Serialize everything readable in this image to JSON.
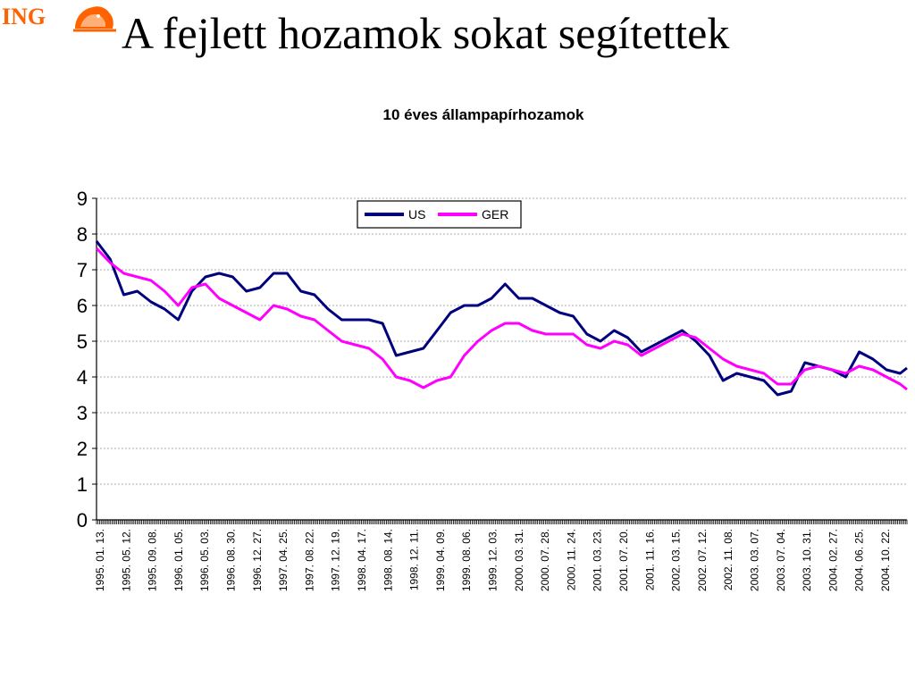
{
  "logo": {
    "text": "ING"
  },
  "slide": {
    "title": "A fejlett hozamok sokat segítettek"
  },
  "colors": {
    "us": "#00007f",
    "ger": "#ff00ff",
    "logo": "#ff6200"
  },
  "chart_data": {
    "type": "line",
    "title": "10 éves állampapírhozamok",
    "xlabel": "",
    "ylabel": "",
    "ylim": [
      0,
      9
    ],
    "yticks": [
      0,
      1,
      2,
      3,
      4,
      5,
      6,
      7,
      8,
      9
    ],
    "grid": true,
    "legend": "top-center",
    "xtick_labels": [
      "1995. 01. 13.",
      "1995. 05. 12.",
      "1995. 09. 08.",
      "1996. 01. 05.",
      "1996. 05. 03.",
      "1996. 08. 30.",
      "1996. 12. 27.",
      "1997. 04. 25.",
      "1997. 08. 22.",
      "1997. 12. 19.",
      "1998. 04. 17.",
      "1998. 08. 14.",
      "1998. 12. 11.",
      "1999. 04. 09.",
      "1999. 08. 06.",
      "1999. 12. 03.",
      "2000. 03. 31.",
      "2000. 07. 28.",
      "2000. 11. 24.",
      "2001. 03. 23.",
      "2001. 07. 20.",
      "2001. 11. 16.",
      "2002. 03. 15.",
      "2002. 07. 12.",
      "2002. 11. 08.",
      "2003. 03. 07.",
      "2003. 07. 04.",
      "2003. 10. 31.",
      "2004. 02. 27.",
      "2004. 06. 25.",
      "2004. 10. 22."
    ],
    "x": [
      "1995-01",
      "1995-03",
      "1995-05",
      "1995-07",
      "1995-09",
      "1995-11",
      "1996-01",
      "1996-03",
      "1996-05",
      "1996-07",
      "1996-09",
      "1996-11",
      "1997-01",
      "1997-03",
      "1997-05",
      "1997-07",
      "1997-09",
      "1997-11",
      "1998-01",
      "1998-03",
      "1998-05",
      "1998-07",
      "1998-09",
      "1998-11",
      "1999-01",
      "1999-03",
      "1999-05",
      "1999-07",
      "1999-09",
      "1999-11",
      "2000-01",
      "2000-03",
      "2000-05",
      "2000-07",
      "2000-09",
      "2000-11",
      "2001-01",
      "2001-03",
      "2001-05",
      "2001-07",
      "2001-09",
      "2001-11",
      "2002-01",
      "2002-03",
      "2002-05",
      "2002-07",
      "2002-09",
      "2002-11",
      "2003-01",
      "2003-03",
      "2003-05",
      "2003-07",
      "2003-09",
      "2003-11",
      "2004-01",
      "2004-03",
      "2004-05",
      "2004-07",
      "2004-09",
      "2004-11",
      "2004-12"
    ],
    "series": [
      {
        "name": "US",
        "color": "#00007f",
        "values": [
          7.8,
          7.3,
          6.3,
          6.4,
          6.1,
          5.9,
          5.6,
          6.4,
          6.8,
          6.9,
          6.8,
          6.4,
          6.5,
          6.9,
          6.9,
          6.4,
          6.3,
          5.9,
          5.6,
          5.6,
          5.6,
          5.5,
          4.6,
          4.7,
          4.8,
          5.3,
          5.8,
          6.0,
          6.0,
          6.2,
          6.6,
          6.2,
          6.2,
          6.0,
          5.8,
          5.7,
          5.2,
          5.0,
          5.3,
          5.1,
          4.7,
          4.9,
          5.1,
          5.3,
          5.0,
          4.6,
          3.9,
          4.1,
          4.0,
          3.9,
          3.5,
          3.6,
          4.4,
          4.3,
          4.2,
          4.0,
          4.7,
          4.5,
          4.2,
          4.1,
          4.25
        ]
      },
      {
        "name": "GER",
        "color": "#ff00ff",
        "values": [
          7.6,
          7.2,
          6.9,
          6.8,
          6.7,
          6.4,
          6.0,
          6.5,
          6.6,
          6.2,
          6.0,
          5.8,
          5.6,
          6.0,
          5.9,
          5.7,
          5.6,
          5.3,
          5.0,
          4.9,
          4.8,
          4.5,
          4.0,
          3.9,
          3.7,
          3.9,
          4.0,
          4.6,
          5.0,
          5.3,
          5.5,
          5.5,
          5.3,
          5.2,
          5.2,
          5.2,
          4.9,
          4.8,
          5.0,
          4.9,
          4.6,
          4.8,
          5.0,
          5.2,
          5.1,
          4.8,
          4.5,
          4.3,
          4.2,
          4.1,
          3.8,
          3.8,
          4.2,
          4.3,
          4.2,
          4.1,
          4.3,
          4.2,
          4.0,
          3.8,
          3.65
        ]
      }
    ]
  }
}
